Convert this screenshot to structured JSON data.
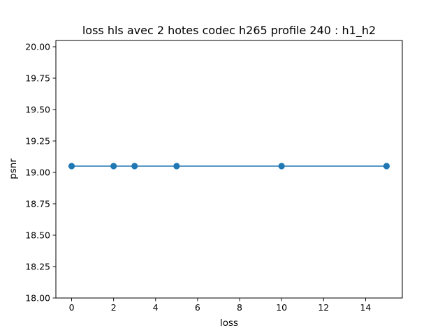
{
  "chart_data": {
    "type": "line",
    "title": "loss hls avec 2 hotes codec h265 profile 240 : h1_h2",
    "xlabel": "loss",
    "ylabel": "psnr",
    "xlim": [
      -0.75,
      15.75
    ],
    "ylim": [
      18.0,
      20.05
    ],
    "xticks": [
      0,
      2,
      4,
      6,
      8,
      10,
      12,
      14
    ],
    "xtick_labels": [
      "0",
      "2",
      "4",
      "6",
      "8",
      "10",
      "12",
      "14"
    ],
    "yticks": [
      18.0,
      18.25,
      18.5,
      18.75,
      19.0,
      19.25,
      19.5,
      19.75,
      20.0
    ],
    "ytick_labels": [
      "18.00",
      "18.25",
      "18.50",
      "18.75",
      "19.00",
      "19.25",
      "19.50",
      "19.75",
      "20.00"
    ],
    "grid": false,
    "series": [
      {
        "x": [
          0,
          2,
          3,
          5,
          10,
          15
        ],
        "y": [
          19.05,
          19.05,
          19.05,
          19.05,
          19.05,
          19.05
        ],
        "color": "#1f77b4",
        "marker": "circle"
      }
    ]
  }
}
